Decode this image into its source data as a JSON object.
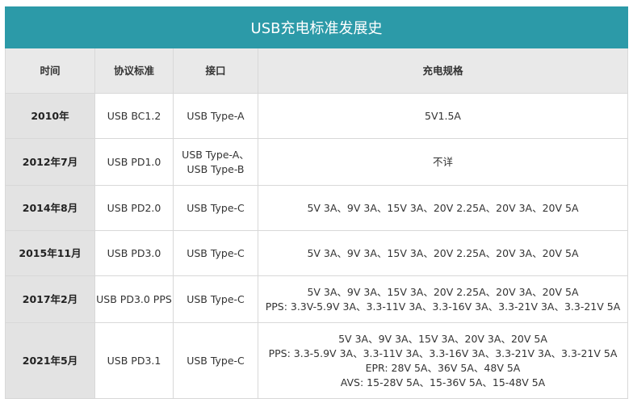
{
  "header": {
    "title": "USB充电标准发展史"
  },
  "table": {
    "columns": [
      "时间",
      "协议标准",
      "接口",
      "充电规格"
    ],
    "rows": [
      [
        "2010年",
        "USB BC1.2",
        "USB Type-A",
        "5V1.5A"
      ],
      [
        "2012年7月",
        "USB PD1.0",
        [
          "USB Type-A、",
          "USB Type-B"
        ],
        "不详"
      ],
      [
        "2014年8月",
        "USB PD2.0",
        "USB Type-C",
        "5V 3A、9V 3A、15V 3A、20V 2.25A、20V 3A、20V 5A"
      ],
      [
        "2015年11月",
        "USB PD3.0",
        "USB Type-C",
        "5V 3A、9V 3A、15V 3A、20V 2.25A、20V 3A、20V 5A"
      ],
      [
        "2017年2月",
        "USB PD3.0 PPS",
        "USB Type-C",
        [
          "5V 3A、9V 3A、15V 3A、20V 2.25A、20V 3A、20V 5A",
          "PPS: 3.3V-5.9V 3A、3.3-11V 3A、3.3-16V 3A、3.3-21V 3A、3.3-21V 5A"
        ]
      ],
      [
        "2021年5月",
        "USB PD3.1",
        "USB Type-C",
        [
          "5V 3A、9V 3A、15V 3A、20V 3A、20V 5A",
          "PPS: 3.3-5.9V 3A、3.3-11V 3A、3.3-16V 3A、3.3-21V 3A、3.3-21V 5A",
          "EPR: 28V 5A、36V 5A、48V 5A",
          "AVS: 15-28V 5A、15-36V 5A、15-48V 5A"
        ]
      ]
    ]
  }
}
